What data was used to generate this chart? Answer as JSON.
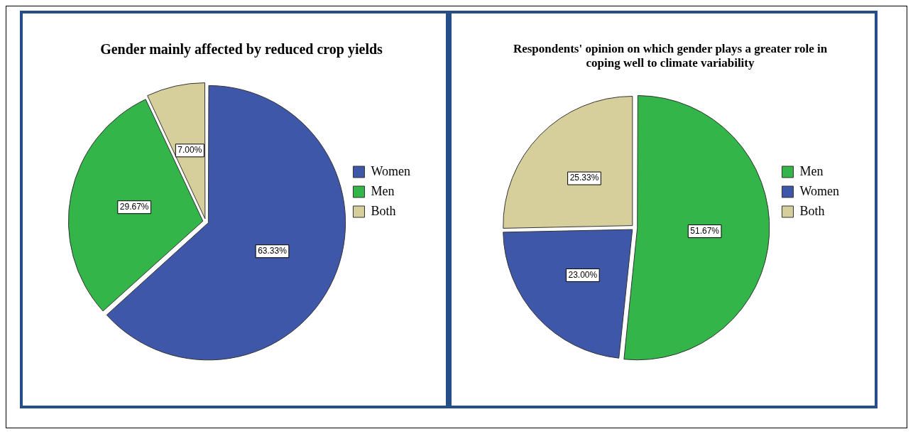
{
  "chart_data": [
    {
      "type": "pie",
      "title": "Gender mainly affected by reduced crop yields",
      "categories": [
        "Women",
        "Men",
        "Both"
      ],
      "values": [
        63.33,
        29.67,
        7.0
      ],
      "colors": [
        "#3f57a8",
        "#33b54a",
        "#d6cf9b"
      ],
      "value_labels": [
        "63.33%",
        "29.67%",
        "7.00%"
      ],
      "legend": "right"
    },
    {
      "type": "pie",
      "title": "Respondents' opinion on which gender plays a greater role in coping well to climate variability",
      "categories": [
        "Men",
        "Women",
        "Both"
      ],
      "values": [
        51.67,
        23.0,
        25.33
      ],
      "colors": [
        "#33b54a",
        "#3f57a8",
        "#d6cf9b"
      ],
      "value_labels": [
        "51.67%",
        "23.00%",
        "25.33%"
      ],
      "legend": "right"
    }
  ]
}
